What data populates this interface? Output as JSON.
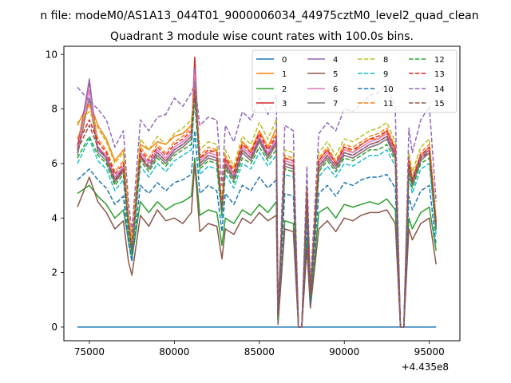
{
  "figure": {
    "suptitle": "n file: modeM0/AS1A13_044T01_9000006034_44975cztM0_level2_quad_clean",
    "title": "Quadrant 3 module wise count rates with 100.0s bins.",
    "offset_label": "+4.435e8"
  },
  "chart_data": {
    "type": "line",
    "title": "Quadrant 3 module wise count rates with 100.0s bins.",
    "xlabel": "",
    "ylabel": "",
    "x_offset": 443500000,
    "xlim": [
      73500,
      96800
    ],
    "ylim": [
      -0.5,
      10.3
    ],
    "xticks": [
      75000,
      80000,
      85000,
      90000,
      95000
    ],
    "xtick_labels": [
      "75000",
      "80000",
      "85000",
      "90000",
      "95000"
    ],
    "yticks": [
      0,
      2,
      4,
      6,
      8,
      10
    ],
    "ytick_labels": [
      "0",
      "2",
      "4",
      "6",
      "8",
      "10"
    ],
    "grid": false,
    "legend_position": "top-right",
    "x": [
      74300,
      75000,
      75500,
      76000,
      76500,
      77000,
      77300,
      77500,
      78000,
      78500,
      79000,
      79500,
      80000,
      80500,
      81000,
      81200,
      81500,
      82000,
      82500,
      82800,
      83000,
      83500,
      84000,
      84500,
      85000,
      85500,
      86000,
      86100,
      86500,
      87000,
      87300,
      87500,
      87800,
      88000,
      88500,
      89000,
      89500,
      90000,
      90500,
      91000,
      91500,
      92000,
      92500,
      93000,
      93300,
      93500,
      93800,
      94000,
      94500,
      95000,
      95400
    ],
    "series": [
      {
        "name": "0",
        "color": "#1f77b4",
        "dash": "solid",
        "values": [
          0,
          0,
          0,
          0,
          0,
          0,
          0,
          0,
          0,
          0,
          0,
          0,
          0,
          0,
          0,
          0,
          0,
          0,
          0,
          0,
          0,
          0,
          0,
          0,
          0,
          0,
          0,
          0,
          0,
          0,
          0,
          0,
          0,
          0,
          0,
          0,
          0,
          0,
          0,
          0,
          0,
          0,
          0,
          0,
          0,
          0,
          0,
          0,
          0,
          0,
          0
        ]
      },
      {
        "name": "1",
        "color": "#ff7f0e",
        "dash": "solid",
        "values": [
          7.4,
          8.3,
          7.4,
          6.9,
          6.1,
          6.5,
          4.1,
          3.2,
          6.7,
          6.5,
          6.8,
          6.7,
          7.0,
          7.1,
          7.4,
          8.8,
          6.2,
          6.4,
          6.5,
          4.4,
          6.2,
          5.6,
          6.8,
          6.4,
          7.2,
          6.6,
          7.3,
          0.4,
          6.2,
          6.1,
          0,
          0,
          5.0,
          1.2,
          6.1,
          6.5,
          6.0,
          6.6,
          6.4,
          6.7,
          6.9,
          6.9,
          7.2,
          6.5,
          0,
          0,
          6.2,
          5.3,
          6.3,
          6.5,
          3.9
        ]
      },
      {
        "name": "2",
        "color": "#2ca02c",
        "dash": "solid",
        "values": [
          4.9,
          5.2,
          4.8,
          4.5,
          4.0,
          4.3,
          3.2,
          2.5,
          4.6,
          4.2,
          4.6,
          4.3,
          4.5,
          4.6,
          4.8,
          6.2,
          4.1,
          4.3,
          4.2,
          3.0,
          4.0,
          3.8,
          4.3,
          4.1,
          4.5,
          4.2,
          4.6,
          0.2,
          3.9,
          3.8,
          0,
          0,
          3.3,
          0.8,
          4.2,
          4.4,
          4.0,
          4.5,
          4.4,
          4.5,
          4.6,
          4.5,
          4.7,
          4.3,
          0,
          0,
          4.0,
          3.6,
          4.2,
          4.4,
          2.8
        ]
      },
      {
        "name": "3",
        "color": "#d62728",
        "dash": "solid",
        "values": [
          6.6,
          9.0,
          6.6,
          6.2,
          5.3,
          5.8,
          3.7,
          2.8,
          6.3,
          5.8,
          6.3,
          6.0,
          6.4,
          6.6,
          6.9,
          9.9,
          5.9,
          6.2,
          6.1,
          4.2,
          5.9,
          5.4,
          6.4,
          6.1,
          6.8,
          6.2,
          6.7,
          0.4,
          5.9,
          5.8,
          0,
          0,
          4.8,
          1.2,
          5.8,
          6.2,
          5.8,
          6.3,
          6.2,
          6.4,
          6.6,
          6.7,
          6.9,
          6.2,
          0,
          0,
          5.8,
          5.2,
          6.1,
          6.4,
          3.6
        ]
      },
      {
        "name": "4",
        "color": "#9467bd",
        "dash": "solid",
        "values": [
          6.4,
          9.1,
          6.5,
          6.2,
          5.4,
          5.9,
          3.8,
          2.9,
          6.4,
          6.0,
          6.4,
          6.1,
          6.5,
          6.7,
          7.0,
          9.5,
          6.0,
          6.3,
          6.2,
          4.3,
          6.0,
          5.5,
          6.5,
          6.2,
          6.9,
          6.3,
          6.8,
          0.4,
          6.0,
          5.9,
          0,
          0,
          4.9,
          1.2,
          5.9,
          6.3,
          5.9,
          6.4,
          6.3,
          6.5,
          6.7,
          6.8,
          7.0,
          6.3,
          0,
          0,
          5.9,
          5.3,
          6.2,
          6.5,
          3.7
        ]
      },
      {
        "name": "5",
        "color": "#8c564b",
        "dash": "solid",
        "values": [
          4.4,
          5.5,
          4.6,
          4.2,
          3.6,
          3.9,
          2.4,
          1.9,
          4.1,
          3.7,
          4.3,
          3.9,
          4.0,
          3.8,
          4.2,
          6.0,
          3.5,
          3.8,
          3.7,
          2.5,
          3.6,
          3.4,
          4.0,
          3.8,
          4.2,
          3.9,
          4.1,
          0.1,
          3.6,
          3.5,
          0,
          0,
          2.9,
          0.7,
          3.6,
          3.9,
          3.5,
          4.0,
          3.9,
          4.1,
          4.2,
          4.2,
          4.3,
          3.8,
          0,
          0,
          3.6,
          3.2,
          3.8,
          4.0,
          2.3
        ]
      },
      {
        "name": "6",
        "color": "#e377c2",
        "dash": "solid",
        "values": [
          6.5,
          8.7,
          6.6,
          6.3,
          5.5,
          5.9,
          3.8,
          2.9,
          6.4,
          6.0,
          6.5,
          6.2,
          6.6,
          6.8,
          7.1,
          9.3,
          6.1,
          6.4,
          6.3,
          4.3,
          6.1,
          5.6,
          6.6,
          6.3,
          7.0,
          6.4,
          6.9,
          0.4,
          6.1,
          6.0,
          0,
          0,
          5.0,
          1.2,
          6.0,
          6.4,
          6.0,
          6.5,
          6.4,
          6.6,
          6.8,
          6.9,
          7.1,
          6.4,
          0,
          0,
          6.0,
          5.4,
          6.3,
          6.6,
          3.8
        ]
      },
      {
        "name": "7",
        "color": "#7f7f7f",
        "dash": "solid",
        "values": [
          6.3,
          8.4,
          6.4,
          6.1,
          5.3,
          5.7,
          3.6,
          2.8,
          6.2,
          5.8,
          6.3,
          6.0,
          6.4,
          6.6,
          6.9,
          9.0,
          5.9,
          6.2,
          6.1,
          4.2,
          5.9,
          5.4,
          6.4,
          6.1,
          6.8,
          6.2,
          6.7,
          0.4,
          5.9,
          5.8,
          0,
          0,
          4.8,
          1.1,
          5.8,
          6.2,
          5.8,
          6.3,
          6.2,
          6.4,
          6.6,
          6.7,
          6.9,
          6.2,
          0,
          0,
          5.8,
          5.2,
          6.1,
          6.4,
          3.6
        ]
      },
      {
        "name": "8",
        "color": "#bcbd22",
        "dash": "dashed",
        "values": [
          7.5,
          7.9,
          7.3,
          6.8,
          6.0,
          6.4,
          4.0,
          3.1,
          6.9,
          6.5,
          7.0,
          6.7,
          7.1,
          7.3,
          7.6,
          8.6,
          6.5,
          6.8,
          6.7,
          4.6,
          6.5,
          5.9,
          7.0,
          6.7,
          7.5,
          6.9,
          7.6,
          0.4,
          6.5,
          6.4,
          0,
          0,
          5.2,
          1.3,
          6.4,
          6.8,
          6.3,
          6.9,
          6.8,
          7.0,
          7.2,
          7.3,
          7.5,
          6.8,
          0,
          0,
          6.4,
          5.7,
          6.6,
          6.9,
          4.0
        ]
      },
      {
        "name": "9",
        "color": "#17becf",
        "dash": "dashed",
        "values": [
          6.0,
          6.9,
          6.1,
          5.8,
          5.0,
          5.4,
          3.4,
          2.6,
          5.9,
          5.5,
          6.0,
          5.7,
          6.1,
          6.3,
          6.5,
          8.3,
          5.6,
          5.9,
          5.8,
          4.0,
          5.6,
          5.1,
          6.0,
          5.8,
          6.4,
          5.9,
          6.3,
          0.3,
          5.6,
          5.5,
          0,
          0,
          4.5,
          1.1,
          5.5,
          5.9,
          5.5,
          6.0,
          5.9,
          6.1,
          6.3,
          6.3,
          6.5,
          5.9,
          0,
          0,
          5.5,
          4.9,
          5.8,
          6.0,
          3.4
        ]
      },
      {
        "name": "10",
        "color": "#1f77b4",
        "dash": "dashed",
        "values": [
          5.4,
          5.8,
          5.4,
          5.1,
          4.5,
          4.8,
          3.1,
          2.4,
          5.2,
          4.9,
          5.3,
          5.0,
          5.3,
          5.4,
          5.6,
          7.2,
          4.9,
          5.2,
          5.0,
          3.5,
          4.9,
          4.5,
          5.2,
          5.0,
          5.5,
          5.1,
          5.4,
          0.3,
          4.9,
          4.8,
          0,
          0,
          3.9,
          0.9,
          4.9,
          5.2,
          4.8,
          5.3,
          5.2,
          5.4,
          5.5,
          5.5,
          5.6,
          5.1,
          0,
          0,
          4.8,
          4.3,
          5.0,
          5.2,
          3.0
        ]
      },
      {
        "name": "11",
        "color": "#ff7f0e",
        "dash": "dashed",
        "values": [
          6.9,
          8.2,
          6.9,
          6.5,
          5.7,
          6.1,
          3.9,
          3.0,
          6.6,
          6.2,
          6.7,
          6.4,
          6.8,
          7.0,
          7.3,
          8.9,
          6.3,
          6.6,
          6.5,
          4.5,
          6.3,
          5.8,
          6.8,
          6.5,
          7.2,
          6.6,
          7.1,
          0.4,
          6.3,
          6.2,
          0,
          0,
          5.1,
          1.2,
          6.2,
          6.6,
          6.1,
          6.7,
          6.6,
          6.8,
          7.0,
          7.1,
          7.3,
          6.6,
          0,
          0,
          6.2,
          5.5,
          6.4,
          6.7,
          3.9
        ]
      },
      {
        "name": "12",
        "color": "#2ca02c",
        "dash": "dashed",
        "values": [
          6.2,
          7.0,
          6.3,
          6.0,
          5.2,
          5.6,
          3.6,
          2.7,
          6.1,
          5.7,
          6.2,
          5.9,
          6.3,
          6.5,
          6.7,
          8.5,
          5.8,
          6.1,
          6.0,
          4.1,
          5.8,
          5.3,
          6.2,
          6.0,
          6.6,
          6.1,
          6.5,
          0.3,
          5.8,
          5.7,
          0,
          0,
          4.7,
          1.1,
          5.7,
          6.1,
          5.7,
          6.2,
          6.1,
          6.3,
          6.5,
          6.5,
          6.7,
          6.1,
          0,
          0,
          5.7,
          5.1,
          6.0,
          6.2,
          3.5
        ]
      },
      {
        "name": "13",
        "color": "#d62728",
        "dash": "dashed",
        "values": [
          6.7,
          7.6,
          6.8,
          6.4,
          5.6,
          6.0,
          3.8,
          2.9,
          6.5,
          6.1,
          6.6,
          6.3,
          6.7,
          6.9,
          7.2,
          8.7,
          6.2,
          6.5,
          6.4,
          4.4,
          6.2,
          5.7,
          6.7,
          6.4,
          7.1,
          6.5,
          7.0,
          0.4,
          6.2,
          6.1,
          0,
          0,
          5.0,
          1.2,
          6.1,
          6.5,
          6.0,
          6.6,
          6.5,
          6.7,
          6.9,
          7.0,
          7.2,
          6.5,
          0,
          0,
          6.1,
          5.4,
          6.3,
          6.6,
          3.8
        ]
      },
      {
        "name": "14",
        "color": "#9467bd",
        "dash": "dashed",
        "values": [
          8.8,
          8.3,
          8.0,
          7.6,
          6.6,
          7.2,
          4.6,
          3.5,
          7.6,
          7.2,
          7.7,
          7.8,
          8.4,
          8.1,
          8.6,
          8.9,
          7.4,
          7.7,
          7.6,
          5.2,
          7.4,
          6.8,
          7.9,
          7.6,
          8.4,
          7.8,
          8.5,
          0.4,
          7.4,
          7.2,
          0,
          0,
          5.9,
          1.5,
          7.1,
          7.5,
          7.2,
          8.0,
          7.9,
          8.2,
          8.5,
          8.6,
          8.9,
          8.0,
          0,
          0,
          7.3,
          6.4,
          7.6,
          8.1,
          4.6
        ]
      },
      {
        "name": "15",
        "color": "#8c564b",
        "dash": "dashed",
        "values": [
          6.5,
          7.4,
          6.6,
          6.2,
          5.4,
          5.8,
          3.7,
          2.8,
          6.3,
          5.9,
          6.4,
          6.1,
          6.5,
          6.7,
          7.0,
          8.6,
          6.0,
          6.3,
          6.2,
          4.3,
          6.0,
          5.5,
          6.5,
          6.2,
          6.9,
          6.3,
          6.8,
          0.4,
          6.0,
          5.9,
          0,
          0,
          4.9,
          1.2,
          5.9,
          6.3,
          5.9,
          6.4,
          6.3,
          6.5,
          6.7,
          6.8,
          7.0,
          6.3,
          0,
          0,
          5.9,
          5.3,
          6.2,
          6.4,
          3.7
        ]
      }
    ]
  }
}
